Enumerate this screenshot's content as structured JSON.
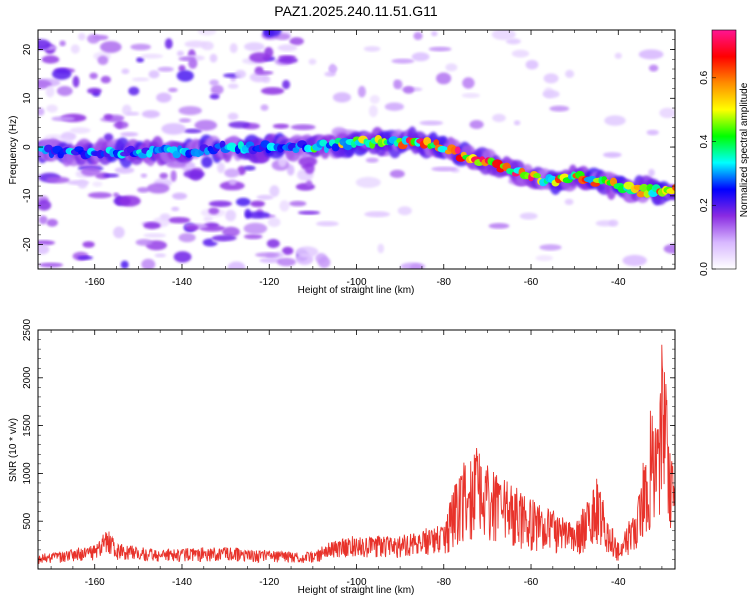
{
  "figure": {
    "title": "PAZ1.2025.240.11.51.G11"
  },
  "chart_data": [
    {
      "type": "heatmap",
      "name": "spectrogram",
      "xlabel": "Height of straight line (km)",
      "ylabel": "Frequency (Hz)",
      "xlim": [
        -173,
        -27
      ],
      "ylim": [
        -25,
        24
      ],
      "xticks": [
        -160,
        -140,
        -120,
        -100,
        -80,
        -60,
        -40
      ],
      "yticks": [
        -20,
        -10,
        0,
        10,
        20
      ],
      "colorbar": {
        "label": "Normalized spectral amplitude",
        "range": [
          0.0,
          0.75
        ],
        "ticks": [
          0.0,
          0.2,
          0.4,
          0.6
        ],
        "colormap": [
          "#ffffff",
          "#d8b8ff",
          "#8a2be2",
          "#0000ff",
          "#00ffff",
          "#00ff00",
          "#ffff00",
          "#ff8c00",
          "#ff0000",
          "#ff1493"
        ]
      },
      "ridge": {
        "description_points_km_hz": [
          [
            -170,
            -1
          ],
          [
            -160,
            -1
          ],
          [
            -150,
            -1
          ],
          [
            -140,
            -1
          ],
          [
            -130,
            0
          ],
          [
            -120,
            0
          ],
          [
            -110,
            0
          ],
          [
            -100,
            1
          ],
          [
            -90,
            1
          ],
          [
            -85,
            1
          ],
          [
            -80,
            0
          ],
          [
            -75,
            -2
          ],
          [
            -70,
            -3
          ],
          [
            -65,
            -5
          ],
          [
            -60,
            -6
          ],
          [
            -55,
            -7
          ],
          [
            -50,
            -6
          ],
          [
            -45,
            -7
          ],
          [
            -40,
            -8
          ],
          [
            -35,
            -9
          ],
          [
            -30,
            -9
          ]
        ]
      }
    },
    {
      "type": "line",
      "name": "snr",
      "xlabel": "Height of straight line (km)",
      "ylabel": "SNR (10 * v/v)",
      "xlim": [
        -173,
        -27
      ],
      "ylim": [
        0,
        2500
      ],
      "xticks": [
        -160,
        -140,
        -120,
        -100,
        -80,
        -60,
        -40
      ],
      "yticks": [
        500,
        1000,
        1500,
        2000,
        2500
      ],
      "color": "#e8322a",
      "envelope_points_km_snr": [
        [
          -173,
          150
        ],
        [
          -165,
          200
        ],
        [
          -160,
          250
        ],
        [
          -157,
          420
        ],
        [
          -155,
          260
        ],
        [
          -145,
          200
        ],
        [
          -130,
          230
        ],
        [
          -125,
          200
        ],
        [
          -115,
          180
        ],
        [
          -110,
          170
        ],
        [
          -105,
          300
        ],
        [
          -100,
          340
        ],
        [
          -90,
          330
        ],
        [
          -85,
          400
        ],
        [
          -80,
          450
        ],
        [
          -78,
          850
        ],
        [
          -76,
          1100
        ],
        [
          -73,
          1250
        ],
        [
          -70,
          1050
        ],
        [
          -65,
          900
        ],
        [
          -60,
          750
        ],
        [
          -55,
          600
        ],
        [
          -50,
          450
        ],
        [
          -47,
          700
        ],
        [
          -45,
          1000
        ],
        [
          -43,
          600
        ],
        [
          -40,
          300
        ],
        [
          -36,
          600
        ],
        [
          -34,
          1200
        ],
        [
          -32,
          1800
        ],
        [
          -31,
          1500
        ],
        [
          -30,
          2300
        ],
        [
          -29,
          2000
        ],
        [
          -28,
          1200
        ],
        [
          -27,
          900
        ]
      ]
    }
  ]
}
